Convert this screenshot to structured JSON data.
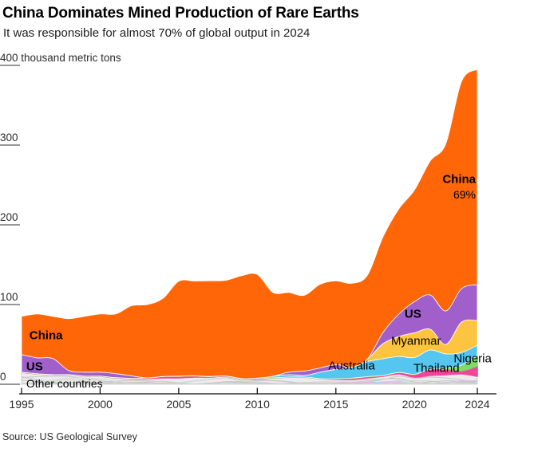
{
  "header": {
    "title": "China Dominates Mined Production of Rare Earths",
    "subtitle": "It was responsible for almost 70% of global output in 2024"
  },
  "source": "Source: US Geological Survey",
  "chart_data": {
    "type": "area",
    "stacked": true,
    "title": "China Dominates Mined Production of Rare Earths",
    "unit": "thousand metric tons",
    "ylim": [
      0,
      400
    ],
    "grid": false,
    "legend": "in-chart labels",
    "x": [
      1995,
      1996,
      1997,
      1998,
      1999,
      2000,
      2001,
      2002,
      2003,
      2004,
      2005,
      2006,
      2007,
      2008,
      2009,
      2010,
      2011,
      2012,
      2013,
      2014,
      2015,
      2016,
      2017,
      2018,
      2019,
      2020,
      2021,
      2022,
      2023,
      2024
    ],
    "x_ticks": [
      1995,
      2000,
      2005,
      2010,
      2015,
      2020,
      2024
    ],
    "y_ticks": [
      {
        "value": 400,
        "label": "400 thousand metric tons"
      },
      {
        "value": 300,
        "label": "300"
      },
      {
        "value": 200,
        "label": "200"
      },
      {
        "value": 100,
        "label": "100"
      },
      {
        "value": 0,
        "label": "0"
      }
    ],
    "series": [
      {
        "key": "other",
        "name": "Other countries",
        "color": "#ececec",
        "values": [
          15,
          13,
          12,
          12,
          10,
          10,
          8,
          7,
          7,
          8,
          8,
          9,
          9,
          10,
          7,
          7,
          8,
          9,
          9,
          7,
          6,
          6,
          8,
          10,
          13,
          9,
          11,
          12,
          13,
          10
        ]
      },
      {
        "key": "thailand",
        "name": "Thailand",
        "color": "#f4459b",
        "values": [
          0.2,
          0.2,
          0.2,
          0.2,
          0.2,
          0.2,
          0.3,
          0.5,
          1,
          1.8,
          2.2,
          1.5,
          0.8,
          0.4,
          0.2,
          0.7,
          0.1,
          0.1,
          0.1,
          0.1,
          0.8,
          1.6,
          1.6,
          1,
          1.9,
          3.6,
          8,
          7,
          4,
          13
        ]
      },
      {
        "key": "nigeria",
        "name": "Nigeria",
        "color": "#7ddc66",
        "values": [
          0,
          0,
          0,
          0,
          0,
          0,
          0,
          0,
          0,
          0,
          0,
          0,
          0,
          0,
          0,
          0,
          0,
          0,
          0,
          0,
          0,
          0,
          0,
          0,
          0,
          0,
          0,
          1,
          7,
          13
        ]
      },
      {
        "key": "australia",
        "name": "Australia",
        "color": "#54c6f0",
        "values": [
          0,
          0,
          0,
          0,
          0,
          0,
          0,
          0,
          0,
          0,
          0,
          0,
          0,
          0,
          0,
          0,
          2,
          3,
          2,
          8,
          12,
          14,
          19,
          21,
          20,
          21,
          24,
          18,
          16,
          13
        ]
      },
      {
        "key": "myanmar",
        "name": "Myanmar",
        "color": "#fdc53f",
        "values": [
          0,
          0,
          0,
          0,
          0,
          0,
          0,
          0,
          0,
          0,
          0,
          0,
          0,
          0,
          0,
          0,
          0,
          0,
          0,
          0,
          0,
          0,
          3,
          19,
          25,
          31,
          26,
          12,
          38,
          31
        ]
      },
      {
        "key": "us",
        "name": "US",
        "color": "#a05fca",
        "values": [
          22,
          20,
          20,
          5,
          5,
          5,
          5,
          3,
          0,
          0,
          0,
          0,
          0,
          0,
          0,
          0,
          0,
          3,
          5.5,
          5.4,
          5.9,
          0,
          0,
          14,
          28,
          39,
          43,
          42,
          42,
          45
        ]
      },
      {
        "key": "china",
        "name": "China",
        "color": "#ff6608",
        "values": [
          48,
          55,
          53,
          65,
          70,
          73,
          75,
          88,
          92,
          98,
          119,
          119,
          120,
          120,
          129,
          130,
          105,
          100,
          95,
          105,
          105,
          105,
          105,
          120,
          132,
          140,
          168,
          210,
          260,
          270
        ]
      }
    ],
    "annotations": [
      {
        "text": "China",
        "year": 1995.5,
        "value": 62,
        "bold": true,
        "size": 15,
        "anchor": "start"
      },
      {
        "text": "US",
        "year": 1995.3,
        "value": 23,
        "bold": true,
        "size": 15,
        "anchor": "start"
      },
      {
        "text": "Other countries",
        "year": 1995.3,
        "value": 1,
        "bold": false,
        "size": 14,
        "anchor": "start"
      },
      {
        "text": "Australia",
        "year": 2016.0,
        "value": 24,
        "bold": false,
        "size": 15,
        "anchor": "middle"
      },
      {
        "text": "Myanmar",
        "year": 2020.1,
        "value": 55,
        "bold": false,
        "size": 15,
        "anchor": "middle"
      },
      {
        "text": "US",
        "year": 2019.9,
        "value": 89,
        "bold": true,
        "size": 15,
        "anchor": "middle"
      },
      {
        "text": "Thailand",
        "year": 2021.4,
        "value": 21,
        "bold": false,
        "size": 15,
        "anchor": "middle"
      },
      {
        "text": "Nigeria",
        "year": 2023.7,
        "value": 33,
        "bold": false,
        "size": 15,
        "anchor": "middle"
      },
      {
        "text": "China",
        "year": 2023.9,
        "value": 258,
        "bold": true,
        "size": 15,
        "anchor": "end"
      },
      {
        "text": "69%",
        "year": 2023.9,
        "value": 238,
        "bold": false,
        "size": 14,
        "anchor": "end"
      }
    ],
    "colors": {
      "axis_line": "#000000",
      "tick_text": "#2b2b2b",
      "y_stub": "#969696",
      "other_ribbons": "#c9c9c9",
      "annotation_text": "#000000"
    }
  }
}
